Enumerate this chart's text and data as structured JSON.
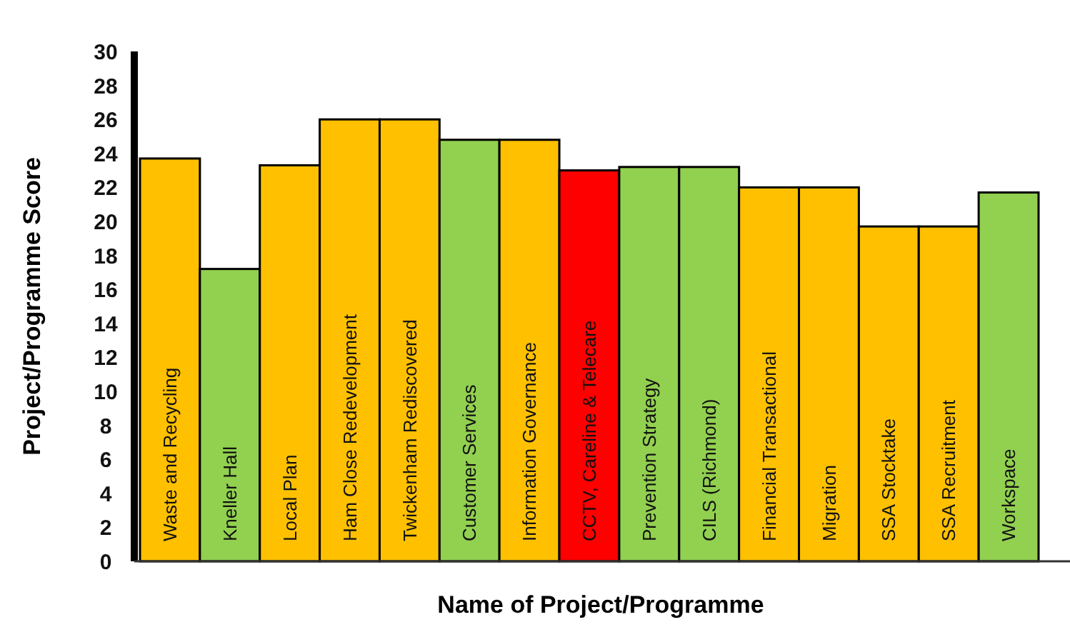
{
  "chart_data": {
    "type": "bar",
    "xlabel": "Name of Project/Programme",
    "ylabel": "Project/Programme Score",
    "categories": [
      "Waste and Recycling",
      "Kneller Hall",
      "Local Plan",
      "Ham Close Redevelopment",
      "Twickenham Rediscovered",
      "Customer Services",
      "Information Governance",
      "CCTV, Careline & Telecare",
      "Prevention Strategy",
      "CILS (Richmond)",
      "Financial Transactional",
      "Migration",
      "SSA Stocktake",
      "SSA Recruitment",
      "Workspace"
    ],
    "values": [
      23.7,
      17.2,
      23.3,
      26,
      26,
      24.8,
      24.8,
      23,
      23.2,
      23.2,
      22,
      22,
      19.7,
      19.7,
      21.7
    ],
    "colors": [
      "#ffc000",
      "#92d050",
      "#ffc000",
      "#ffc000",
      "#ffc000",
      "#92d050",
      "#ffc000",
      "#ff0000",
      "#92d050",
      "#92d050",
      "#ffc000",
      "#ffc000",
      "#ffc000",
      "#ffc000",
      "#92d050"
    ],
    "ylim": [
      0,
      30
    ],
    "yticks": [
      0,
      2,
      4,
      6,
      8,
      10,
      12,
      14,
      16,
      18,
      20,
      22,
      24,
      26,
      28,
      30
    ],
    "grid": false
  }
}
